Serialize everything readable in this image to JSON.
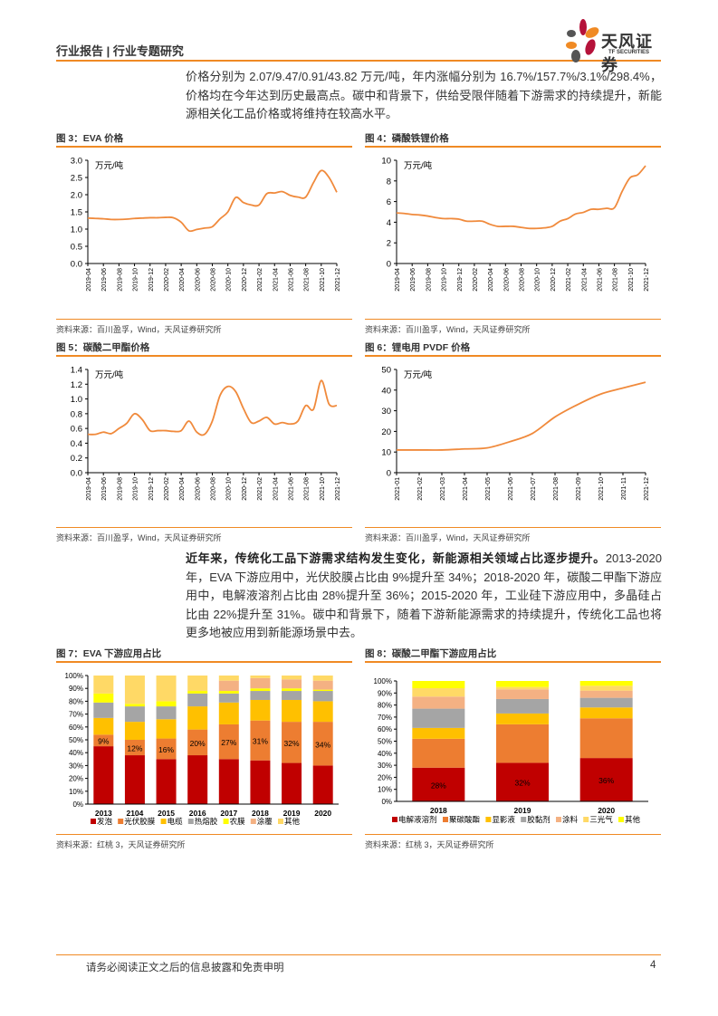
{
  "header": {
    "title": "行业报告 | 行业专题研究",
    "logo_cn": "天风证券",
    "logo_en": "TF SECURITIES"
  },
  "para1": "价格分别为 2.07/9.47/0.91/43.82 万元/吨，年内涨幅分别为 16.7%/157.7%/3.1%/298.4%，价格均在今年达到历史最高点。碳中和背景下，供给受限伴随着下游需求的持续提升，新能源相关化工品价格或将维持在较高水平。",
  "para2": {
    "bold": "近年来，传统化工品下游需求结构发生变化，新能源相关领域占比逐步提升。",
    "rest": "2013-2020 年，EVA 下游应用中，光伏胶膜占比由 9%提升至 34%；2018-2020 年，碳酸二甲酯下游应用中，电解液溶剂占比由 28%提升至 36%；2015-2020 年，工业硅下游应用中，多晶硅占比由 22%提升至 31%。碳中和背景下，随着下游新能源需求的持续提升，传统化工品也将更多地被应用到新能源场景中去。"
  },
  "figures": [
    {
      "title": "图 3：EVA 价格",
      "source": "资料来源：百川盈孚，Wind，天风证券研究所"
    },
    {
      "title": "图 4：磷酸铁锂价格",
      "source": "资料来源：百川盈孚，Wind，天风证券研究所"
    },
    {
      "title": "图 5：碳酸二甲酯价格",
      "source": "资料来源：百川盈孚，Wind，天风证券研究所"
    },
    {
      "title": "图 6：锂电用 PVDF 价格",
      "source": "资料来源：百川盈孚，Wind，天风证券研究所"
    },
    {
      "title": "图 7：EVA 下游应用占比",
      "source": "资料来源：红桃 3，天风证券研究所"
    },
    {
      "title": "图 8：碳酸二甲酯下游应用占比",
      "source": "资料来源：红桃 3，天风证券研究所"
    }
  ],
  "footer": {
    "disclaimer": "请务必阅读正文之后的信息披露和免责申明",
    "page": "4"
  },
  "chart_data": [
    {
      "type": "line",
      "unit_label": "万元/吨",
      "ylim": [
        0,
        3.0
      ],
      "yticks": [
        "0.0",
        "0.5",
        "1.0",
        "1.5",
        "2.0",
        "2.5",
        "3.0"
      ],
      "color": "#f08a3c",
      "xtick_labels": [
        "2019-04",
        "2019-06",
        "2019-08",
        "2019-10",
        "2019-12",
        "2020-02",
        "2020-04",
        "2020-06",
        "2020-08",
        "2020-10",
        "2020-12",
        "2021-02",
        "2021-04",
        "2021-06",
        "2021-08",
        "2021-10",
        "2021-12"
      ],
      "values": [
        1.32,
        1.31,
        1.3,
        1.28,
        1.28,
        1.29,
        1.31,
        1.32,
        1.33,
        1.33,
        1.34,
        1.33,
        1.2,
        0.95,
        0.99,
        1.03,
        1.07,
        1.3,
        1.5,
        1.92,
        1.77,
        1.7,
        1.7,
        2.03,
        2.05,
        2.09,
        1.98,
        1.93,
        1.93,
        2.35,
        2.7,
        2.5,
        2.07
      ]
    },
    {
      "type": "line",
      "unit_label": "万元/吨",
      "ylim": [
        0,
        10
      ],
      "yticks": [
        "0",
        "2",
        "4",
        "6",
        "8",
        "10"
      ],
      "color": "#f08a3c",
      "xtick_labels": [
        "2019-04",
        "2019-06",
        "2019-08",
        "2019-10",
        "2019-12",
        "2020-02",
        "2020-04",
        "2020-06",
        "2020-08",
        "2020-10",
        "2020-12",
        "2021-02",
        "2021-04",
        "2021-06",
        "2021-08",
        "2021-10",
        "2021-12"
      ],
      "values": [
        4.9,
        4.85,
        4.75,
        4.7,
        4.6,
        4.45,
        4.35,
        4.35,
        4.3,
        4.1,
        4.1,
        4.1,
        3.8,
        3.6,
        3.6,
        3.6,
        3.5,
        3.4,
        3.4,
        3.45,
        3.6,
        4.1,
        4.35,
        4.8,
        4.95,
        5.25,
        5.25,
        5.35,
        5.4,
        7.0,
        8.3,
        8.6,
        9.47
      ]
    },
    {
      "type": "line",
      "unit_label": "万元/吨",
      "ylim": [
        0,
        1.4
      ],
      "yticks": [
        "0.0",
        "0.2",
        "0.4",
        "0.6",
        "0.8",
        "1.0",
        "1.2",
        "1.4"
      ],
      "color": "#f08a3c",
      "xtick_labels": [
        "2019-04",
        "2019-06",
        "2019-08",
        "2019-10",
        "2019-12",
        "2020-02",
        "2020-04",
        "2020-06",
        "2020-08",
        "2020-10",
        "2020-12",
        "2021-02",
        "2021-04",
        "2021-06",
        "2021-08",
        "2021-10",
        "2021-12"
      ],
      "values": [
        0.52,
        0.52,
        0.55,
        0.53,
        0.6,
        0.67,
        0.8,
        0.72,
        0.57,
        0.57,
        0.57,
        0.56,
        0.57,
        0.7,
        0.55,
        0.52,
        0.7,
        1.05,
        1.17,
        1.1,
        0.87,
        0.68,
        0.7,
        0.75,
        0.66,
        0.68,
        0.66,
        0.7,
        0.91,
        0.86,
        1.25,
        0.93,
        0.91
      ]
    },
    {
      "type": "line",
      "unit_label": "万元/吨",
      "ylim": [
        0,
        50
      ],
      "yticks": [
        "0",
        "10",
        "20",
        "30",
        "40",
        "50"
      ],
      "color": "#f08a3c",
      "xtick_labels": [
        "2021-01",
        "2021-02",
        "2021-03",
        "2021-04",
        "2021-05",
        "2021-06",
        "2021-07",
        "2021-08",
        "2021-09",
        "2021-10",
        "2021-11",
        "2021-12"
      ],
      "values": [
        11,
        11,
        11,
        11.5,
        12,
        15,
        19,
        27,
        33,
        38,
        41,
        43.82
      ]
    },
    {
      "type": "bar",
      "stacked": true,
      "ylim": [
        0,
        100
      ],
      "yticks": [
        "0%",
        "10%",
        "20%",
        "30%",
        "40%",
        "50%",
        "60%",
        "70%",
        "80%",
        "90%",
        "100%"
      ],
      "categories": [
        "2013",
        "2104",
        "2015",
        "2016",
        "2017",
        "2018",
        "2019",
        "2020"
      ],
      "series": [
        {
          "name": "发泡",
          "color": "#c00000",
          "values": [
            45,
            38,
            35,
            38,
            35,
            34,
            32,
            30
          ]
        },
        {
          "name": "光伏胶膜",
          "color": "#ed7d31",
          "values": [
            9,
            12,
            16,
            20,
            27,
            31,
            32,
            34
          ],
          "labels": [
            "9%",
            "12%",
            "16%",
            "20%",
            "27%",
            "31%",
            "32%",
            "34%"
          ]
        },
        {
          "name": "电缆",
          "color": "#ffc000",
          "values": [
            13,
            14,
            15,
            18,
            17,
            16,
            17,
            16
          ]
        },
        {
          "name": "热熔胶",
          "color": "#a5a5a5",
          "values": [
            12,
            12,
            10,
            10,
            7,
            7,
            7,
            8
          ]
        },
        {
          "name": "农膜",
          "color": "#ffff00",
          "values": [
            7,
            2,
            4,
            2,
            2,
            2,
            2,
            1
          ]
        },
        {
          "name": "涂覆",
          "color": "#f4b183",
          "values": [
            0,
            0,
            0,
            0,
            8,
            8,
            7,
            7
          ]
        },
        {
          "name": "其他",
          "color": "#ffd966",
          "values": [
            14,
            22,
            20,
            12,
            4,
            2,
            3,
            4
          ]
        }
      ],
      "legend": "bottom"
    },
    {
      "type": "bar",
      "stacked": true,
      "ylim": [
        0,
        100
      ],
      "yticks": [
        "0%",
        "10%",
        "20%",
        "30%",
        "40%",
        "50%",
        "60%",
        "70%",
        "80%",
        "90%",
        "100%"
      ],
      "categories": [
        "2018",
        "2019",
        "2020"
      ],
      "series": [
        {
          "name": "电解液溶剂",
          "color": "#c00000",
          "values": [
            28,
            32,
            36
          ],
          "labels": [
            "28%",
            "32%",
            "36%"
          ]
        },
        {
          "name": "聚碳酸酯",
          "color": "#ed7d31",
          "values": [
            24,
            32,
            33
          ]
        },
        {
          "name": "显影液",
          "color": "#ffc000",
          "values": [
            9,
            9,
            9
          ]
        },
        {
          "name": "胶黏剂",
          "color": "#a5a5a5",
          "values": [
            16,
            12,
            8
          ]
        },
        {
          "name": "涂料",
          "color": "#f4b183",
          "values": [
            10,
            8,
            6
          ]
        },
        {
          "name": "三光气",
          "color": "#ffd966",
          "values": [
            7,
            2,
            4
          ]
        },
        {
          "name": "其他",
          "color": "#ffff00",
          "values": [
            6,
            5,
            4
          ]
        }
      ],
      "legend": "bottom"
    }
  ]
}
